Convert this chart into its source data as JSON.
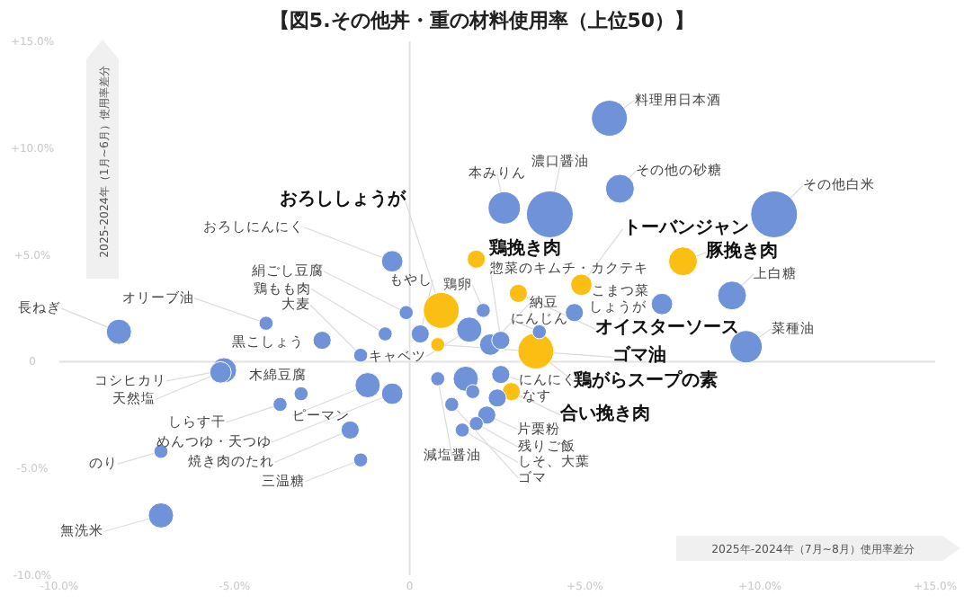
{
  "chart_data": {
    "type": "bubble",
    "title": "【図5.その他丼・重の材料使用率（上位50）】",
    "xlabel": "2025年-2024年（7月~8月）使用率差分",
    "ylabel": "2025-2024年（1月~6月）使用率差分",
    "xlim": [
      -10,
      15
    ],
    "ylim": [
      -10,
      15
    ],
    "xticks": [
      {
        "value": -10,
        "label": "-10.0%"
      },
      {
        "value": -5,
        "label": "-5.0%"
      },
      {
        "value": 0,
        "label": "0"
      },
      {
        "value": 5,
        "label": "+5.0%"
      },
      {
        "value": 10,
        "label": "+10.0%"
      },
      {
        "value": 15,
        "label": "+15.0%"
      }
    ],
    "yticks": [
      {
        "value": -10,
        "label": "-10.0%"
      },
      {
        "value": -5,
        "label": "-5.0%"
      },
      {
        "value": 0,
        "label": "0"
      },
      {
        "value": 5,
        "label": "+5.0%"
      },
      {
        "value": 10,
        "label": "+10.0%"
      },
      {
        "value": 15,
        "label": "+15.0%"
      }
    ],
    "x": [
      5.7,
      4.0,
      2.7,
      6.0,
      10.4,
      7.8,
      9.2,
      7.2,
      9.6,
      4.9,
      1.9,
      3.1,
      0.9,
      0.8,
      3.6,
      2.9,
      -8.3,
      -4.1,
      -2.5,
      -0.7,
      -0.1,
      -0.5,
      -1.4,
      -5.3,
      -5.4,
      -3.1,
      -3.7,
      -1.2,
      -0.5,
      -1.7,
      -1.4,
      -7.1,
      -7.1,
      0.8,
      1.6,
      1.8,
      2.1,
      1.7,
      2.3,
      2.6,
      3.7,
      4.7,
      2.6,
      2.5,
      2.2,
      1.9,
      1.5,
      1.2,
      0.3
    ],
    "values": [
      11.4,
      6.9,
      7.2,
      8.1,
      6.9,
      4.7,
      3.1,
      2.7,
      0.7,
      3.6,
      4.8,
      3.2,
      2.4,
      0.8,
      0.5,
      -1.4,
      1.4,
      1.8,
      1.0,
      1.3,
      2.3,
      4.7,
      0.3,
      -0.4,
      -0.5,
      -1.5,
      -2.0,
      -1.1,
      -1.5,
      -3.2,
      -4.6,
      -4.2,
      -7.2,
      -0.8,
      -0.8,
      -1.4,
      2.4,
      1.5,
      0.8,
      1.0,
      1.4,
      2.3,
      -0.6,
      -1.7,
      -2.5,
      -2.9,
      -3.2,
      -2.0,
      1.3
    ],
    "sizes": [
      0.59,
      1,
      0.48,
      0.38,
      1,
      0.38,
      0.38,
      0.21,
      0.48,
      0.21,
      0.15,
      0.15,
      0.59,
      0.09,
      0.59,
      0.15,
      0.29,
      0.09,
      0.15,
      0.09,
      0.09,
      0.21,
      0.09,
      0.29,
      0.21,
      0.09,
      0.09,
      0.29,
      0.21,
      0.15,
      0.09,
      0.09,
      0.29,
      0.09,
      0.29,
      0.09,
      0.09,
      0.29,
      0.21,
      0.15,
      0.09,
      0.15,
      0.15,
      0.15,
      0.15,
      0.09,
      0.09,
      0.09,
      0.15
    ],
    "colors": [
      "#6f92d8",
      "#6f92d8",
      "#6f92d8",
      "#6f92d8",
      "#6f92d8",
      "#fbbf14",
      "#6f92d8",
      "#6f92d8",
      "#6f92d8",
      "#fbbf14",
      "#fbbf14",
      "#fbbf14",
      "#fbbf14",
      "#fbbf14",
      "#fbbf14",
      "#fbbf14",
      "#6f92d8",
      "#6f92d8",
      "#6f92d8",
      "#6f92d8",
      "#6f92d8",
      "#6f92d8",
      "#6f92d8",
      "#6f92d8",
      "#6f92d8",
      "#6f92d8",
      "#6f92d8",
      "#6f92d8",
      "#6f92d8",
      "#6f92d8",
      "#6f92d8",
      "#6f92d8",
      "#6f92d8",
      "#6f92d8",
      "#6f92d8",
      "#6f92d8",
      "#6f92d8",
      "#6f92d8",
      "#6f92d8",
      "#6f92d8",
      "#6f92d8",
      "#6f92d8",
      "#6f92d8",
      "#6f92d8",
      "#6f92d8",
      "#6f92d8",
      "#6f92d8",
      "#6f92d8",
      "#6f92d8"
    ],
    "annotations": [
      {
        "text": "料理用日本酒",
        "x": 5.7,
        "y": 11.4
      },
      {
        "text": "濃口醤油",
        "x": 4.0,
        "y": 6.9
      },
      {
        "text": "本みりん",
        "x": 2.7,
        "y": 7.2
      },
      {
        "text": "その他の砂糖",
        "x": 6.0,
        "y": 8.1
      },
      {
        "text": "その他白米",
        "x": 10.4,
        "y": 6.9
      },
      {
        "text": "豚挽き肉",
        "x": 7.8,
        "y": 4.7
      },
      {
        "text": "上白糖",
        "x": 9.2,
        "y": 3.1
      },
      {
        "text": "こまつ菜",
        "x": 7.2,
        "y": 2.7
      },
      {
        "text": "菜種油",
        "x": 9.6,
        "y": 0.7
      },
      {
        "text": "トーバンジャン",
        "x": 4.9,
        "y": 3.6
      },
      {
        "text": "鶏挽き肉",
        "x": 1.9,
        "y": 4.8
      },
      {
        "text": "オイスターソース",
        "x": 3.1,
        "y": 3.2
      },
      {
        "text": "おろししょうが",
        "x": 0.9,
        "y": 2.4
      },
      {
        "text": "ゴマ油",
        "x": 0.8,
        "y": 0.8
      },
      {
        "text": "鶏がらスープの素",
        "x": 3.6,
        "y": 0.5
      },
      {
        "text": "合い挽き肉",
        "x": 2.9,
        "y": -1.4
      },
      {
        "text": "長ねぎ",
        "x": -8.3,
        "y": 1.4
      },
      {
        "text": "オリーブ油",
        "x": -4.1,
        "y": 1.8
      },
      {
        "text": "黒こしょう",
        "x": -2.5,
        "y": 1.0
      },
      {
        "text": "鶏もも肉",
        "x": -0.7,
        "y": 1.3
      },
      {
        "text": "絹ごし豆腐",
        "x": -0.1,
        "y": 2.3
      },
      {
        "text": "おろしにんにく",
        "x": -0.5,
        "y": 4.7
      },
      {
        "text": "大麦",
        "x": -1.4,
        "y": 0.3
      },
      {
        "text": "コシヒカリ",
        "x": -5.3,
        "y": -0.4
      },
      {
        "text": "天然塩",
        "x": -5.4,
        "y": -0.5
      },
      {
        "text": "木綿豆腐",
        "x": -3.1,
        "y": -1.5
      },
      {
        "text": "しらす干",
        "x": -3.7,
        "y": -2.0
      },
      {
        "text": "ピーマン",
        "x": -1.2,
        "y": -1.1
      },
      {
        "text": "めんつゆ・天つゆ",
        "x": -0.5,
        "y": -1.5
      },
      {
        "text": "焼き肉のたれ",
        "x": -1.7,
        "y": -3.2
      },
      {
        "text": "三温糖",
        "x": -1.4,
        "y": -4.6
      },
      {
        "text": "のり",
        "x": -7.1,
        "y": -4.2
      },
      {
        "text": "無洗米",
        "x": -7.1,
        "y": -7.2
      },
      {
        "text": "減塩醤油",
        "x": 0.8,
        "y": -0.8
      },
      {
        "text": "鶏卵",
        "x": 2.1,
        "y": 2.4
      },
      {
        "text": "キャベツ",
        "x": 1.7,
        "y": 1.5
      },
      {
        "text": "納豆",
        "x": 2.3,
        "y": 0.8
      },
      {
        "text": "惣菜のキムチ・カクテキ",
        "x": 2.6,
        "y": 1.0
      },
      {
        "text": "にんじん",
        "x": 3.7,
        "y": 1.4
      },
      {
        "text": "しょうが",
        "x": 4.7,
        "y": 2.3
      },
      {
        "text": "にんにく",
        "x": 2.6,
        "y": -0.6
      },
      {
        "text": "なす",
        "x": 2.5,
        "y": -1.7
      },
      {
        "text": "片栗粉",
        "x": 2.2,
        "y": -2.5
      },
      {
        "text": "残りご飯",
        "x": 1.9,
        "y": -2.9
      },
      {
        "text": "しそ、大葉",
        "x": 1.5,
        "y": -3.2
      },
      {
        "text": "ゴマ",
        "x": 1.2,
        "y": -2.0
      },
      {
        "text": "もやし",
        "x": 0.3,
        "y": 1.3
      }
    ]
  }
}
